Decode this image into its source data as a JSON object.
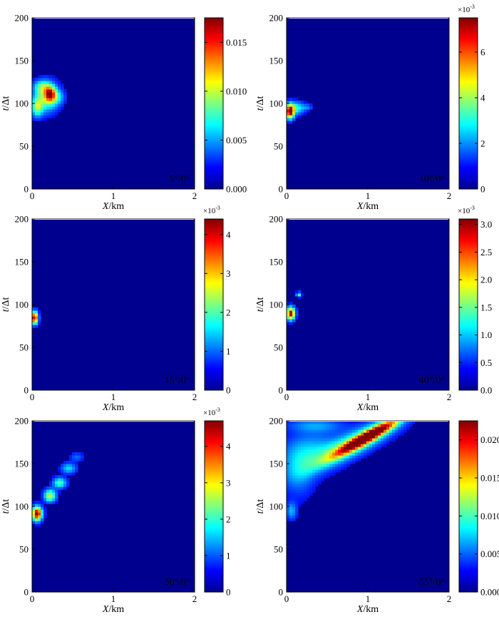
{
  "figure": {
    "panel_count": 6,
    "colormap": "jet",
    "plot_background": "#00008f"
  },
  "chart_data": [
    {
      "type": "heatmap",
      "panel_label": "5°/0°",
      "xlabel_var": "X",
      "xlabel_unit": "/km",
      "ylabel_var": "t",
      "ylabel_unit": "/Δt",
      "xlim": [
        0,
        2
      ],
      "ylim": [
        0,
        200
      ],
      "x_ticks": [
        "0",
        "1",
        "2"
      ],
      "y_ticks": [
        "0",
        "50",
        "100",
        "150",
        "200"
      ],
      "colorbar": {
        "min": 0,
        "max": 0.0175,
        "multiplier": "",
        "ticks": [
          0,
          0.005,
          0.01,
          0.015
        ],
        "tick_labels": [
          "0.000",
          "0.005",
          "0.010",
          "0.015"
        ]
      },
      "features": [
        {
          "x": 0.18,
          "t": 108,
          "rx": 0.14,
          "rt": 16,
          "angle": 0,
          "amp": 0.48
        },
        {
          "x": 0.06,
          "t": 96,
          "rx": 0.07,
          "rt": 11,
          "angle": 0,
          "amp": 0.42
        },
        {
          "x": 0.22,
          "t": 112,
          "rx": 0.06,
          "rt": 8,
          "angle": 0,
          "amp": 0.58
        },
        {
          "x": 0.12,
          "t": 120,
          "rx": 0.1,
          "rt": 7,
          "angle": 0,
          "amp": 0.28
        },
        {
          "x": 0.3,
          "t": 108,
          "rx": 0.09,
          "rt": 8,
          "angle": 0,
          "amp": 0.22
        }
      ]
    },
    {
      "type": "heatmap",
      "panel_label": "10°/0°",
      "xlabel_var": "X",
      "xlabel_unit": "/km",
      "ylabel_var": "t",
      "ylabel_unit": "/Δt",
      "xlim": [
        0,
        2
      ],
      "ylim": [
        0,
        200
      ],
      "x_ticks": [
        "0",
        "1",
        "2"
      ],
      "y_ticks": [
        "0",
        "50",
        "100",
        "150",
        "200"
      ],
      "colorbar": {
        "min": 0,
        "max": 0.0075,
        "multiplier": "×10-3",
        "ticks": [
          0,
          0.002,
          0.004,
          0.006
        ],
        "tick_labels": [
          "0",
          "2",
          "4",
          "6"
        ]
      },
      "features": [
        {
          "x": 0.04,
          "t": 91,
          "rx": 0.05,
          "rt": 8,
          "angle": 0,
          "amp": 1.0
        },
        {
          "x": 0.12,
          "t": 95,
          "rx": 0.1,
          "rt": 7,
          "angle": 0,
          "amp": 0.35
        },
        {
          "x": 0.26,
          "t": 96,
          "rx": 0.06,
          "rt": 3,
          "angle": 0,
          "amp": 0.15
        }
      ]
    },
    {
      "type": "heatmap",
      "panel_label": "15°/0°",
      "xlabel_var": "X",
      "xlabel_unit": "/km",
      "ylabel_var": "t",
      "ylabel_unit": "/Δt",
      "xlim": [
        0,
        2
      ],
      "ylim": [
        0,
        200
      ],
      "x_ticks": [
        "0",
        "1",
        "2"
      ],
      "y_ticks": [
        "0",
        "50",
        "100",
        "150",
        "200"
      ],
      "colorbar": {
        "min": 0,
        "max": 0.0044,
        "multiplier": "×10-3",
        "ticks": [
          0,
          0.001,
          0.002,
          0.003,
          0.004
        ],
        "tick_labels": [
          "0",
          "1",
          "2",
          "3",
          "4"
        ]
      },
      "features": [
        {
          "x": 0.03,
          "t": 85,
          "rx": 0.04,
          "rt": 7,
          "angle": 0,
          "amp": 1.0
        }
      ]
    },
    {
      "type": "heatmap",
      "panel_label": "40°/0°",
      "xlabel_var": "X",
      "xlabel_unit": "/km",
      "ylabel_var": "t",
      "ylabel_unit": "/Δt",
      "xlim": [
        0,
        2
      ],
      "ylim": [
        0,
        200
      ],
      "x_ticks": [
        "0",
        "1",
        "2"
      ],
      "y_ticks": [
        "0",
        "50",
        "100",
        "150",
        "200"
      ],
      "colorbar": {
        "min": 0,
        "max": 0.0031,
        "multiplier": "×10-3",
        "ticks": [
          0,
          0.0005,
          0.001,
          0.0015,
          0.002,
          0.0025,
          0.003
        ],
        "tick_labels": [
          "0.0",
          "0.5",
          "1.0",
          "1.5",
          "2.0",
          "2.5",
          "3.0"
        ]
      },
      "features": [
        {
          "x": 0.05,
          "t": 90,
          "rx": 0.05,
          "rt": 7,
          "angle": 0,
          "amp": 1.0
        },
        {
          "x": 0.15,
          "t": 112,
          "rx": 0.03,
          "rt": 2.5,
          "angle": 0,
          "amp": 0.4
        }
      ]
    },
    {
      "type": "heatmap",
      "panel_label": "50°/0°",
      "xlabel_var": "X",
      "xlabel_unit": "/km",
      "ylabel_var": "t",
      "ylabel_unit": "/Δt",
      "xlim": [
        0,
        2
      ],
      "ylim": [
        0,
        200
      ],
      "x_ticks": [
        "0",
        "1",
        "2"
      ],
      "y_ticks": [
        "0",
        "50",
        "100",
        "150",
        "200"
      ],
      "colorbar": {
        "min": 0,
        "max": 0.0047,
        "multiplier": "×10-3",
        "ticks": [
          0,
          0.001,
          0.002,
          0.003,
          0.004
        ],
        "tick_labels": [
          "0",
          "1",
          "2",
          "3",
          "4"
        ]
      },
      "features": [
        {
          "x": 0.06,
          "t": 92,
          "rx": 0.06,
          "rt": 8,
          "angle": 0,
          "amp": 1.0
        },
        {
          "x": 0.22,
          "t": 113,
          "rx": 0.07,
          "rt": 7,
          "angle": 0,
          "amp": 0.55
        },
        {
          "x": 0.34,
          "t": 128,
          "rx": 0.08,
          "rt": 6,
          "angle": 0,
          "amp": 0.4
        },
        {
          "x": 0.45,
          "t": 145,
          "rx": 0.09,
          "rt": 6,
          "angle": 0,
          "amp": 0.28
        },
        {
          "x": 0.55,
          "t": 158,
          "rx": 0.08,
          "rt": 5,
          "angle": 0,
          "amp": 0.15
        }
      ]
    },
    {
      "type": "heatmap",
      "panel_label": "55°/0°",
      "xlabel_var": "X",
      "xlabel_unit": "/km",
      "ylabel_var": "t",
      "ylabel_unit": "/Δt",
      "xlim": [
        0,
        2
      ],
      "ylim": [
        0,
        200
      ],
      "x_ticks": [
        "0",
        "1",
        "2"
      ],
      "y_ticks": [
        "0",
        "50",
        "100",
        "150",
        "200"
      ],
      "colorbar": {
        "min": 0,
        "max": 0.0225,
        "multiplier": "",
        "ticks": [
          0,
          0.005,
          0.01,
          0.015,
          0.02
        ],
        "tick_labels": [
          "0.000",
          "0.005",
          "0.010",
          "0.015",
          "0.020"
        ]
      },
      "features": [
        {
          "x": 1.0,
          "t": 182,
          "rx": 0.42,
          "rt": 6,
          "angle": 28,
          "amp": 1.0
        },
        {
          "x": 0.85,
          "t": 175,
          "rx": 0.6,
          "rt": 13,
          "angle": 26,
          "amp": 0.45
        },
        {
          "x": 0.3,
          "t": 165,
          "rx": 0.35,
          "rt": 22,
          "angle": 12,
          "amp": 0.22
        },
        {
          "x": 0.15,
          "t": 140,
          "rx": 0.2,
          "rt": 30,
          "angle": 0,
          "amp": 0.16
        },
        {
          "x": 0.06,
          "t": 95,
          "rx": 0.06,
          "rt": 10,
          "angle": 0,
          "amp": 0.22
        },
        {
          "x": 0.35,
          "t": 195,
          "rx": 0.35,
          "rt": 8,
          "angle": 0,
          "amp": 0.18
        }
      ]
    }
  ]
}
